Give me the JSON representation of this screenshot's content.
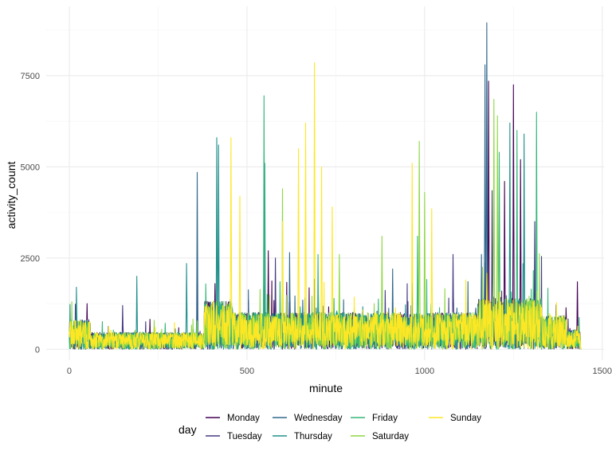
{
  "chart_data": {
    "type": "line",
    "xlabel": "minute",
    "ylabel": "activity_count",
    "xlim": [
      -65,
      1505
    ],
    "ylim": [
      -300,
      9400
    ],
    "x_ticks": [
      0,
      500,
      1000,
      1500
    ],
    "x_tick_labels": [
      "0",
      "500",
      "1000",
      "1500"
    ],
    "y_ticks": [
      0,
      2500,
      5000,
      7500
    ],
    "y_tick_labels": [
      "0",
      "2500",
      "5000",
      "7500"
    ],
    "grid": true,
    "legend": {
      "title": "day",
      "position": "bottom",
      "entries": [
        {
          "name": "Monday",
          "color": "#440154"
        },
        {
          "name": "Tuesday",
          "color": "#443A83"
        },
        {
          "name": "Wednesday",
          "color": "#31688E"
        },
        {
          "name": "Thursday",
          "color": "#21908C"
        },
        {
          "name": "Friday",
          "color": "#35B779"
        },
        {
          "name": "Saturday",
          "color": "#8FD744"
        },
        {
          "name": "Sunday",
          "color": "#FDE725"
        }
      ]
    },
    "series": [
      {
        "name": "Monday",
        "color": "#440154",
        "peaks": [
          [
            1180,
            7350
          ],
          [
            1250,
            7250
          ],
          [
            1270,
            5200
          ],
          [
            1225,
            4600
          ],
          [
            560,
            2700
          ],
          [
            50,
            1250
          ],
          [
            1430,
            1850
          ],
          [
            410,
            1800
          ]
        ]
      },
      {
        "name": "Tuesday",
        "color": "#443A83",
        "peaks": [
          [
            1190,
            4350
          ],
          [
            1310,
            3500
          ],
          [
            1080,
            2600
          ],
          [
            580,
            2500
          ],
          [
            150,
            1200
          ],
          [
            360,
            1800
          ]
        ]
      },
      {
        "name": "Wednesday",
        "color": "#31688E",
        "peaks": [
          [
            1175,
            8950
          ],
          [
            1170,
            7800
          ],
          [
            360,
            4850
          ],
          [
            1160,
            2600
          ],
          [
            620,
            2650
          ],
          [
            910,
            2200
          ]
        ]
      },
      {
        "name": "Thursday",
        "color": "#21908C",
        "peaks": [
          [
            415,
            5800
          ],
          [
            420,
            5600
          ],
          [
            550,
            5100
          ],
          [
            1240,
            6200
          ],
          [
            1280,
            5900
          ],
          [
            190,
            2000
          ],
          [
            20,
            1700
          ],
          [
            330,
            2350
          ]
        ]
      },
      {
        "name": "Friday",
        "color": "#35B779",
        "peaks": [
          [
            548,
            6950
          ],
          [
            1315,
            6500
          ],
          [
            1260,
            6000
          ],
          [
            1210,
            5400
          ],
          [
            980,
            3100
          ],
          [
            700,
            2600
          ]
        ]
      },
      {
        "name": "Saturday",
        "color": "#8FD744",
        "peaks": [
          [
            1195,
            6850
          ],
          [
            1205,
            6400
          ],
          [
            985,
            5700
          ],
          [
            600,
            4400
          ],
          [
            880,
            3100
          ],
          [
            1000,
            4300
          ],
          [
            760,
            2600
          ]
        ]
      },
      {
        "name": "Sunday",
        "color": "#FDE725",
        "peaks": [
          [
            690,
            7850
          ],
          [
            665,
            6200
          ],
          [
            645,
            5500
          ],
          [
            710,
            5000
          ],
          [
            455,
            5800
          ],
          [
            480,
            4200
          ],
          [
            1020,
            3850
          ],
          [
            965,
            5100
          ],
          [
            740,
            3900
          ],
          [
            600,
            3500
          ]
        ]
      }
    ]
  }
}
